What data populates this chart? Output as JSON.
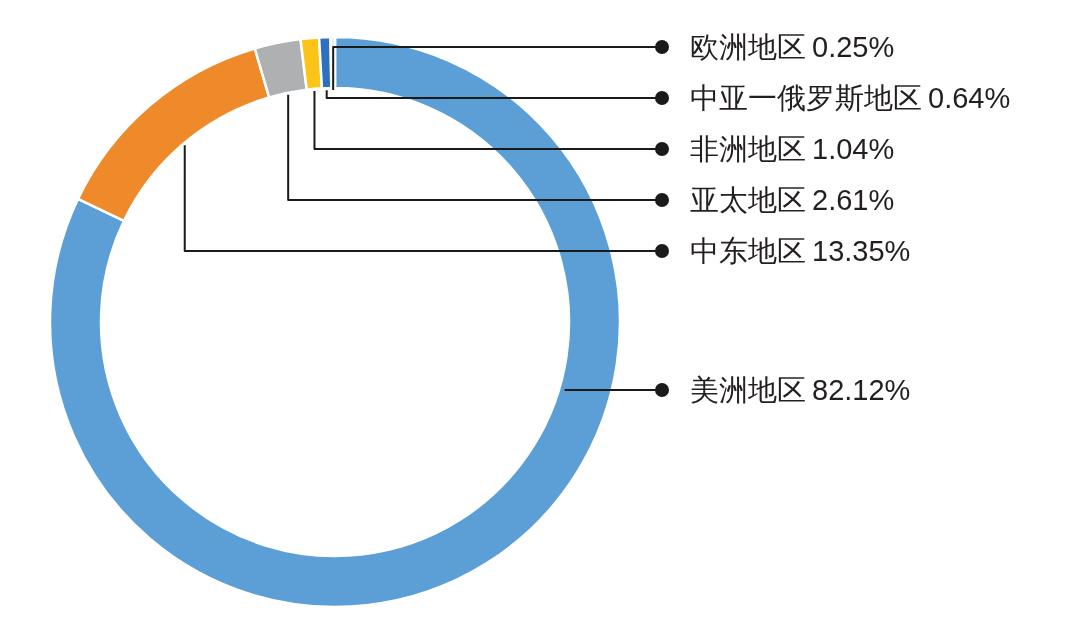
{
  "chart_data": {
    "type": "donut",
    "categories": [
      "美洲地区",
      "中东地区",
      "亚太地区",
      "非洲地区",
      "中亚一俄罗斯地区",
      "欧洲地区"
    ],
    "values": [
      82.12,
      13.35,
      2.61,
      1.04,
      0.64,
      0.25
    ],
    "colors": [
      "#5b9fd6",
      "#ef8a2a",
      "#aeb0b2",
      "#fcc418",
      "#2f6fbf",
      "#e3ece6"
    ],
    "value_labels": [
      "82.12%",
      "13.35%",
      "2.61%",
      "1.04%",
      "0.64%",
      "0.25%"
    ]
  }
}
